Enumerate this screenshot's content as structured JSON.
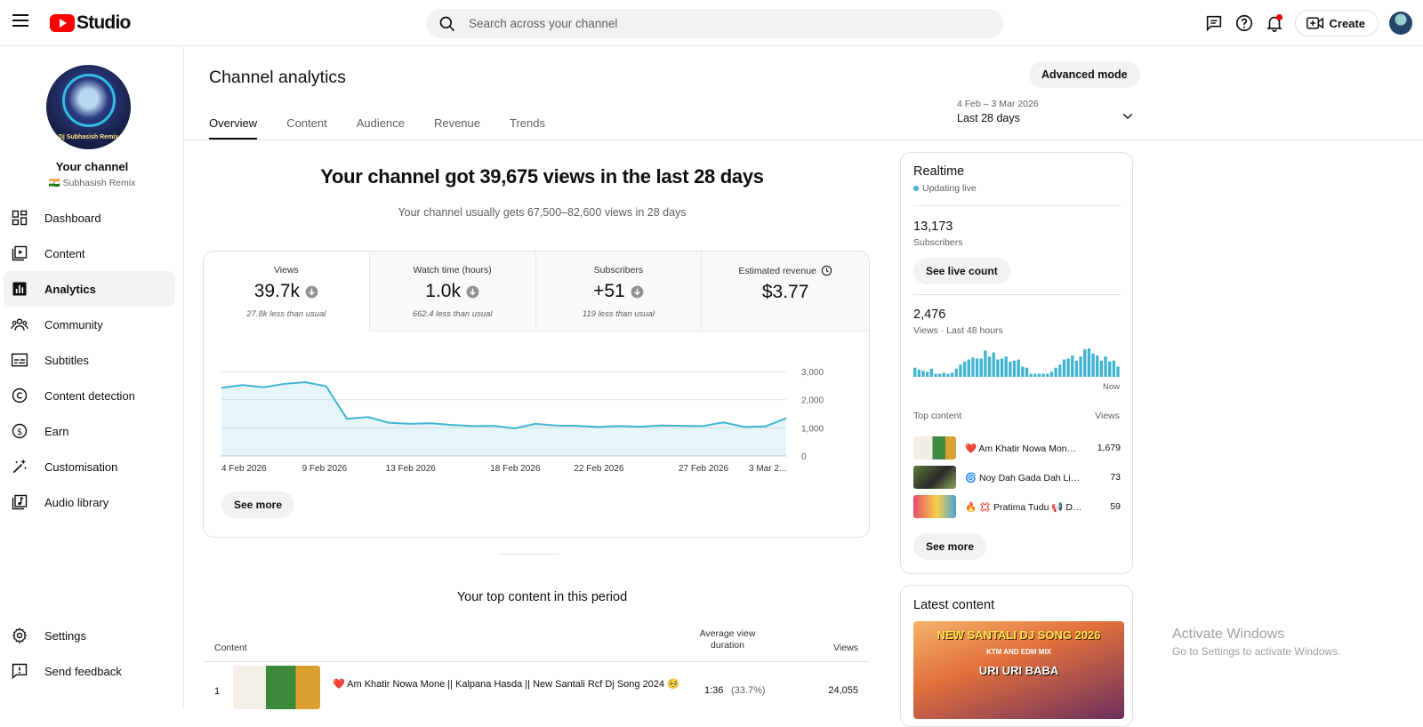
{
  "header": {
    "logo_text": "Studio",
    "search_placeholder": "Search across your channel",
    "create_label": "Create"
  },
  "sidebar": {
    "your_channel": "Your channel",
    "channel_name": "🇮🇳 Subhasish Remix",
    "avatar_text": "Dj Subhasish Remix",
    "items": [
      {
        "label": "Dashboard",
        "icon": "dashboard-icon"
      },
      {
        "label": "Content",
        "icon": "content-icon"
      },
      {
        "label": "Analytics",
        "icon": "analytics-icon",
        "active": true
      },
      {
        "label": "Community",
        "icon": "community-icon"
      },
      {
        "label": "Subtitles",
        "icon": "subtitles-icon"
      },
      {
        "label": "Content detection",
        "icon": "copyright-icon"
      },
      {
        "label": "Earn",
        "icon": "dollar-icon"
      },
      {
        "label": "Customisation",
        "icon": "magic-wand-icon"
      },
      {
        "label": "Audio library",
        "icon": "audio-library-icon"
      }
    ],
    "bottom_items": [
      {
        "label": "Settings",
        "icon": "gear-icon"
      },
      {
        "label": "Send feedback",
        "icon": "feedback-icon"
      }
    ]
  },
  "main": {
    "title": "Channel analytics",
    "advanced_mode": "Advanced mode",
    "tabs": [
      "Overview",
      "Content",
      "Audience",
      "Revenue",
      "Trends"
    ],
    "date_range": {
      "dates": "4 Feb – 3 Mar 2026",
      "label": "Last 28 days"
    },
    "headline": "Your channel got 39,675 views in the last 28 days",
    "subline": "Your channel usually gets 67,500–82,600 views in 28 days",
    "metrics": [
      {
        "label": "Views",
        "value": "39.7k",
        "note": "27.8k less than usual"
      },
      {
        "label": "Watch time (hours)",
        "value": "1.0k",
        "note": "662.4 less than usual"
      },
      {
        "label": "Subscribers",
        "value": "+51",
        "note": "119 less than usual"
      },
      {
        "label": "Estimated revenue",
        "value": "$3.77",
        "note": ""
      }
    ],
    "see_more": "See more",
    "top_content_title": "Your top content in this period",
    "table": {
      "col_content": "Content",
      "col_avd": "Average view duration",
      "col_views": "Views",
      "rows": [
        {
          "rank": "1",
          "title": "❤️ Am Khatir Nowa Mone || Kalpana Hasda || New Santali Rcf Dj Song 2024 🥺",
          "avd": "1:36",
          "avd_pct": "(33.7%)",
          "views": "24,055"
        }
      ]
    }
  },
  "chart_data": {
    "type": "area",
    "x": [
      "4 Feb 2026",
      "5 Feb 2026",
      "6 Feb 2026",
      "7 Feb 2026",
      "8 Feb 2026",
      "9 Feb 2026",
      "10 Feb 2026",
      "11 Feb 2026",
      "12 Feb 2026",
      "13 Feb 2026",
      "14 Feb 2026",
      "15 Feb 2026",
      "16 Feb 2026",
      "17 Feb 2026",
      "18 Feb 2026",
      "19 Feb 2026",
      "20 Feb 2026",
      "21 Feb 2026",
      "22 Feb 2026",
      "23 Feb 2026",
      "24 Feb 2026",
      "25 Feb 2026",
      "26 Feb 2026",
      "27 Feb 2026",
      "28 Feb 2026",
      "1 Mar 2026",
      "2 Mar 2026",
      "3 Mar 2026"
    ],
    "values": [
      2420,
      2520,
      2440,
      2560,
      2620,
      2480,
      1320,
      1380,
      1180,
      1140,
      1160,
      1100,
      1060,
      1070,
      980,
      1140,
      1080,
      1070,
      1030,
      1060,
      1040,
      1080,
      1070,
      1060,
      1190,
      1030,
      1050,
      1340
    ],
    "x_tick_labels": [
      "4 Feb 2026",
      "9 Feb 2026",
      "13 Feb 2026",
      "18 Feb 2026",
      "22 Feb 2026",
      "27 Feb 2026",
      "3 Mar 2..."
    ],
    "y_ticks": [
      "3,000",
      "2,000",
      "1,000",
      "0"
    ],
    "ylim": [
      0,
      3000
    ],
    "grid": true,
    "color": "#41b4d2"
  },
  "realtime": {
    "title": "Realtime",
    "live": "Updating live",
    "subscribers": "13,173",
    "subscribers_label": "Subscribers",
    "see_live": "See live count",
    "views": "2,476",
    "views_label": "Views · Last 48 hours",
    "bars": [
      9,
      7,
      6,
      5,
      8,
      3,
      3,
      4,
      3,
      4,
      8,
      12,
      15,
      17,
      19,
      18,
      18,
      26,
      20,
      24,
      17,
      18,
      20,
      15,
      16,
      17,
      10,
      9,
      3,
      3,
      3,
      3,
      3,
      5,
      9,
      12,
      17,
      18,
      21,
      16,
      20,
      27,
      28,
      23,
      21,
      16,
      20,
      15,
      16,
      10
    ],
    "now": "Now",
    "top_content": "Top content",
    "views_col": "Views",
    "items": [
      {
        "title": "❤️ Am Khatir Nowa Mon…",
        "views": "1,679"
      },
      {
        "title": "🌀 Noy Dah Gada Dah Lingi …",
        "views": "73"
      },
      {
        "title": "🔥 💢 Pratima Tudu 📢 Dah…",
        "views": "59"
      }
    ],
    "see_more": "See more"
  },
  "latest": {
    "title": "Latest content",
    "thumb_line1": "NEW SANTALI DJ SONG 2026",
    "thumb_line2": "KTM AND EDM MIX",
    "thumb_line3": "URI URI BABA"
  },
  "watermark": {
    "line1": "Activate Windows",
    "line2": "Go to Settings to activate Windows."
  }
}
